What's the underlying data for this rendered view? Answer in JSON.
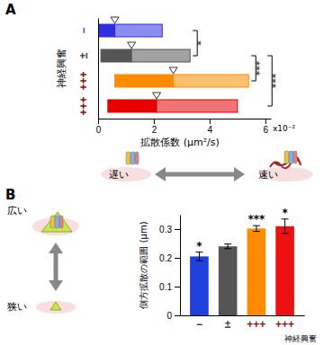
{
  "chart_data": [
    {
      "type": "range_bar",
      "title": "A",
      "orientation": "horizontal",
      "categories": [
        "−",
        "±",
        "+++",
        "+++"
      ],
      "low": [
        0.0,
        0.1,
        0.6,
        0.35
      ],
      "values": [
        0.6,
        1.2,
        2.7,
        2.1
      ],
      "high": [
        2.3,
        3.3,
        5.4,
        5.0
      ],
      "colors": [
        "#2f2fe0",
        "#555555",
        "#ff8c00",
        "#e60000"
      ],
      "xlim": [
        0,
        6.2
      ],
      "xticks": [
        0,
        2,
        4,
        6
      ],
      "x_label": "拡散係数 (μm²/s)",
      "x_unit": "x10⁻²",
      "y_label": "神経興奮",
      "brackets": [
        {
          "text": "*",
          "between": [
            0,
            1
          ]
        },
        {
          "text": "***",
          "between": [
            1,
            2
          ]
        },
        {
          "text": "***",
          "between": [
            1,
            3
          ]
        }
      ],
      "annotations": [
        "遅い",
        "速い"
      ]
    },
    {
      "type": "bar",
      "title": "B",
      "categories": [
        "−",
        "±",
        "+++",
        "+++"
      ],
      "values": [
        0.205,
        0.24,
        0.302,
        0.31
      ],
      "errors": [
        0.015,
        0.008,
        0.01,
        0.025
      ],
      "colors": [
        "#2040dd",
        "#555555",
        "#ff8c00",
        "#ee1111"
      ],
      "ylim": [
        0,
        0.35
      ],
      "yticks": [
        0,
        0.1,
        0.2,
        0.3
      ],
      "y_label": "側方拡散の範囲 (μm)",
      "x_label": "神経興奮",
      "annotations": [
        {
          "text": "*",
          "category": 0
        },
        {
          "text": "***",
          "category": 2
        },
        {
          "text": "*",
          "category": 3
        }
      ],
      "vertical_labels": [
        "広い",
        "狭い"
      ]
    }
  ]
}
